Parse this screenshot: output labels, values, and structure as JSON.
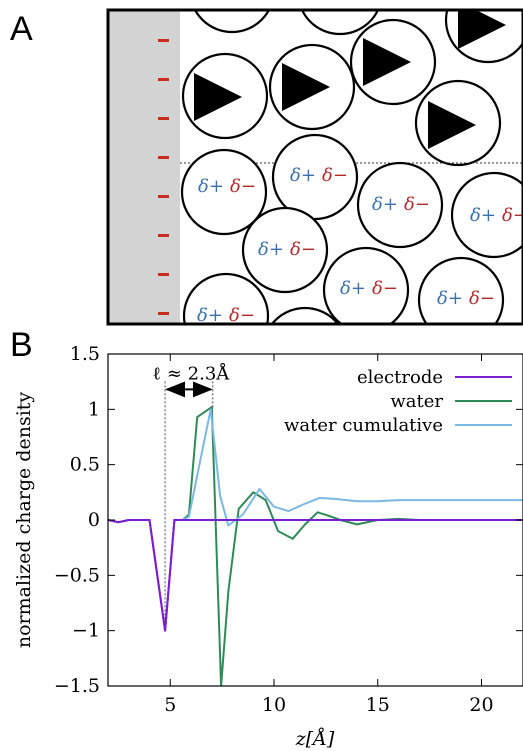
{
  "panel_a": {
    "label": "A",
    "electrode_charge_glyph": "-",
    "partial_positive": "δ+",
    "partial_negative": "δ−",
    "colors": {
      "electrode_fill": "#d3d3d3",
      "electrode_charge": "#cc2b1d",
      "delta_plus": "#3a6fb0",
      "delta_minus": "#b22a2a"
    }
  },
  "panel_b": {
    "label": "B",
    "annotation": "ℓ ≈ 2.3Å"
  },
  "chart_data": {
    "type": "line",
    "title": "",
    "xlabel": "z[Å]",
    "ylabel": "normalized charge density",
    "xlim": [
      2,
      22
    ],
    "ylim": [
      -1.5,
      1.5
    ],
    "xticks": [
      5,
      10,
      15,
      20
    ],
    "yticks": [
      1.5,
      1,
      0.5,
      0,
      -0.5,
      -1,
      -1.5
    ],
    "xtick_labels": [
      "5",
      "10",
      "15",
      "20"
    ],
    "ytick_labels": [
      "1.5",
      "1",
      "0.5",
      "0",
      "−0.5",
      "−1",
      "−1.5"
    ],
    "grid": false,
    "legend_position": "top-right",
    "annotation_range": [
      4.75,
      7.05
    ],
    "series": [
      {
        "name": "electrode",
        "color": "#7a1fd0",
        "x": [
          2,
          2.5,
          3,
          4.0,
          4.75,
          5.2,
          6,
          22
        ],
        "y": [
          0,
          -0.02,
          0,
          0,
          -1.0,
          0,
          0,
          0
        ]
      },
      {
        "name": "water",
        "color": "#2e8b57",
        "x": [
          5.6,
          5.9,
          6.3,
          7.0,
          7.45,
          7.8,
          8.3,
          9.0,
          9.6,
          10.2,
          10.9,
          11.5,
          12.1,
          12.6,
          13.2,
          14.0,
          15.0,
          16.0,
          17.0,
          18.0,
          19.0,
          20.0,
          21.0,
          22.0
        ],
        "y": [
          0.0,
          0.05,
          0.93,
          1.02,
          -1.5,
          -0.65,
          0.1,
          0.25,
          0.18,
          -0.1,
          -0.17,
          -0.04,
          0.07,
          0.04,
          0.0,
          -0.04,
          0.0,
          0.01,
          0.0,
          0.0,
          0.0,
          0.0,
          0.0,
          0.0
        ]
      },
      {
        "name": "water cumulative",
        "color": "#7ab8e6",
        "x": [
          5.6,
          5.9,
          6.3,
          6.95,
          7.4,
          7.8,
          8.5,
          9.3,
          10.0,
          10.7,
          11.4,
          12.2,
          13.0,
          14.0,
          15.0,
          16.0,
          17.0,
          18.0,
          19.0,
          20.0,
          21.0,
          22.0
        ],
        "y": [
          0.0,
          0.03,
          0.4,
          1.0,
          0.22,
          -0.05,
          0.05,
          0.28,
          0.12,
          0.08,
          0.14,
          0.2,
          0.19,
          0.17,
          0.17,
          0.18,
          0.18,
          0.18,
          0.18,
          0.18,
          0.18,
          0.18
        ]
      }
    ]
  }
}
